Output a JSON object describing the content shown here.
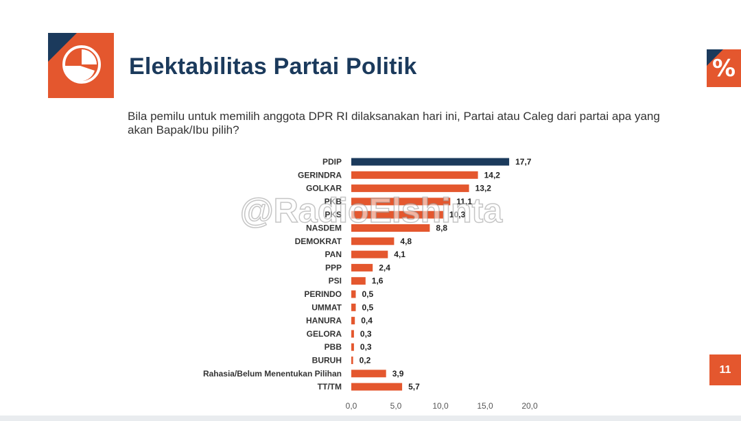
{
  "slide": {
    "title": "Elektabilitas Partai Politik",
    "question": "Bila pemilu untuk memilih anggota DPR RI dilaksanakan hari ini, Partai atau Caleg dari partai apa yang akan Bapak/Ibu pilih?",
    "percent_badge": "%",
    "page_number": "11",
    "watermark": "@RadioElshinta",
    "logo_icon": "pie-chart-icon"
  },
  "colors": {
    "accent": "#e4572e",
    "navy": "#1b3a5c",
    "highlight_bar": "#1b3a5c",
    "bar": "#e4572e"
  },
  "chart_data": {
    "type": "bar",
    "orientation": "horizontal",
    "categories": [
      "PDIP",
      "GERINDRA",
      "GOLKAR",
      "PKB",
      "PKS",
      "NASDEM",
      "DEMOKRAT",
      "PAN",
      "PPP",
      "PSI",
      "PERINDO",
      "UMMAT",
      "HANURA",
      "GELORA",
      "PBB",
      "BURUH",
      "Rahasia/Belum Menentukan Pilihan",
      "TT/TM"
    ],
    "values": [
      17.7,
      14.2,
      13.2,
      11.1,
      10.3,
      8.8,
      4.8,
      4.1,
      2.4,
      1.6,
      0.5,
      0.5,
      0.4,
      0.3,
      0.3,
      0.2,
      3.9,
      5.7
    ],
    "value_labels": [
      "17,7",
      "14,2",
      "13,2",
      "11,1",
      "10,3",
      "8,8",
      "4,8",
      "4,1",
      "2,4",
      "1,6",
      "0,5",
      "0,5",
      "0,4",
      "0,3",
      "0,3",
      "0,2",
      "3,9",
      "5,7"
    ],
    "highlight_index": 0,
    "xlim": [
      0,
      20
    ],
    "xticks": [
      "0,0",
      "5,0",
      "10,0",
      "15,0",
      "20,0"
    ],
    "xtick_values": [
      0,
      5,
      10,
      15,
      20
    ],
    "grid": false,
    "legend": "none"
  }
}
